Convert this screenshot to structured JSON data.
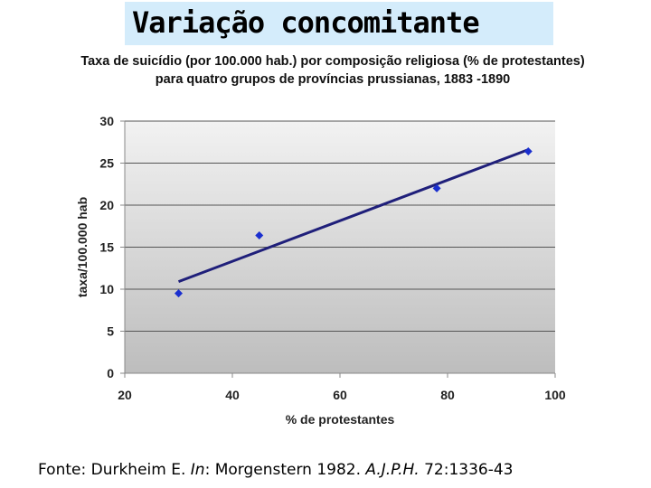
{
  "slide": {
    "title": "Variação concomitante"
  },
  "chart_data": {
    "type": "scatter",
    "title": "Taxa de suicídio (por 100.000 hab.) por composição religiosa (% de protestantes) para quatro grupos de províncias prussianas, 1883 -1890",
    "xlabel": "% de protestantes",
    "ylabel": "taxa/100.000 hab",
    "xlim": [
      20,
      100
    ],
    "ylim": [
      0,
      30
    ],
    "x_ticks": [
      20,
      40,
      60,
      80,
      100
    ],
    "y_ticks": [
      0,
      5,
      10,
      15,
      20,
      25,
      30
    ],
    "grid": true,
    "legend": "none",
    "series": [
      {
        "x": [
          30,
          45,
          78,
          95
        ],
        "y": [
          9.5,
          16.4,
          22.0,
          26.4
        ],
        "color": "#1a2fcf"
      }
    ],
    "trendline": {
      "x": [
        30,
        95
      ],
      "y": [
        10.9,
        26.6
      ],
      "color": "#1f1f7a"
    },
    "plot_background": [
      "#f2f2f2",
      "#bdbdbd"
    ]
  },
  "source": {
    "prefix": "Fonte: Durkheim E. ",
    "in_label": "In",
    "middle": ": Morgenstern 1982. ",
    "journal": "A.J.P.H.",
    "suffix": " 72:1336-43"
  }
}
